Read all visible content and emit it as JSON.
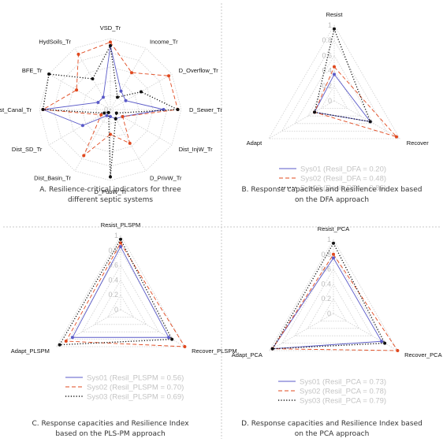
{
  "captions": {
    "A": [
      "A. Resilience-critical indicators for three",
      "different septic systems"
    ],
    "B": [
      "B. Response capacities and Resilience Index based",
      "on the DFA approach"
    ],
    "C": [
      "C. Response capacities and Resilience Index",
      "based on the PLS-PM approach"
    ],
    "D": [
      "D. Response capacities and Resilience Index based",
      "on the PCA approach"
    ]
  },
  "chart_data": [
    {
      "panel": "A",
      "type": "radar",
      "axes": [
        "VSD_Tr",
        "Income_Tr",
        "D_Overflow_Tr",
        "D_Sewer_Tr",
        "Dist_InjW_Tr",
        "D_PrivW_Tr",
        "D_PubW_Tr",
        "Dist_Basin_Tr",
        "Dist_SD_Tr",
        "Dist_Canal_Tr",
        "BFE_Tr",
        "HydSoils_Tr"
      ],
      "ticks": [
        0,
        0.2,
        0.4,
        0.6,
        0.8,
        1
      ],
      "tick_labels": [
        "0",
        "",
        "",
        "",
        "",
        ""
      ],
      "range": [
        0,
        1
      ],
      "grid": "web",
      "series": [
        {
          "values": [
            0.9,
            0.3,
            0.25,
            0.75,
            0.2,
            0.15,
            0.1,
            0.1,
            0.45,
            0.95,
            0.2,
            0.2
          ],
          "color": "#5a5ac8",
          "style": "solid"
        },
        {
          "values": [
            0.95,
            0.6,
            0.95,
            0.95,
            0.2,
            0.55,
            0.35,
            0.75,
            0.15,
            0.95,
            0.55,
            0.9
          ],
          "color": "#e0481e",
          "style": "dashed"
        },
        {
          "values": [
            0.9,
            0.2,
            0.5,
            0.95,
            0.1,
            0.15,
            0.95,
            0.05,
            0.1,
            0.95,
            1.0,
            0.5
          ],
          "color": "#111111",
          "style": "dotted"
        }
      ]
    },
    {
      "panel": "B",
      "type": "radar",
      "axes": [
        "Resist",
        "Recover",
        "Adapt"
      ],
      "ticks": [
        0,
        0.2,
        0.4,
        0.6,
        0.8,
        1
      ],
      "tick_labels": [
        "0",
        "0.2",
        "0.4",
        "0.6",
        "0.8",
        "1"
      ],
      "range": [
        0,
        1
      ],
      "grid": "web",
      "legend_position": "bottom-right",
      "series": [
        {
          "name": "Sys01 (Resil_DFA = 0.20)",
          "values": [
            0.35,
            0.55,
            0.3
          ],
          "color": "#5a5ac8",
          "style": "solid"
        },
        {
          "name": "Sys02 (Resil_DFA = 0.48)",
          "values": [
            0.45,
            0.95,
            0.3
          ],
          "color": "#e0481e",
          "style": "dashed"
        },
        {
          "name": "Sys03 (Resil_DFA = 0.86)",
          "values": [
            0.95,
            0.55,
            0.3
          ],
          "color": "#111111",
          "style": "dotted"
        }
      ]
    },
    {
      "panel": "C",
      "type": "radar",
      "axes": [
        "Resist_PLSPM",
        "Recover_PLSPM",
        "Adapt_PLSPM"
      ],
      "ticks": [
        0,
        0.2,
        0.4,
        0.6,
        0.8,
        1
      ],
      "tick_labels": [
        "0",
        "0.2",
        "0.4",
        "0.6",
        "0.8",
        "1"
      ],
      "range": [
        0,
        1
      ],
      "grid": "web",
      "legend_position": "bottom-right",
      "series": [
        {
          "name": "Sys01 (Resil_PLSPM = 0.56)",
          "values": [
            0.85,
            0.75,
            0.75
          ],
          "color": "#5a5ac8",
          "style": "solid"
        },
        {
          "name": "Sys02 (Resil_PLSPM = 0.70)",
          "values": [
            0.9,
            1.0,
            0.85
          ],
          "color": "#e0481e",
          "style": "dashed"
        },
        {
          "name": "Sys03 (Resil_PLSPM = 0.69)",
          "values": [
            0.95,
            0.8,
            0.95
          ],
          "color": "#111111",
          "style": "dotted"
        }
      ]
    },
    {
      "panel": "D",
      "type": "radar",
      "axes": [
        "Resist_PCA",
        "Recover_PCA",
        "Adapt_PCA"
      ],
      "ticks": [
        0,
        0.2,
        0.4,
        0.6,
        0.8,
        1
      ],
      "tick_labels": [
        "0",
        "0.2",
        "0.4",
        "0.6",
        "0.8",
        "1"
      ],
      "range": [
        0,
        1
      ],
      "grid": "web",
      "legend_position": "bottom-right",
      "series": [
        {
          "name": "Sys01 (Resil_PCA = 0.73)",
          "values": [
            0.75,
            0.75,
            0.95
          ],
          "color": "#5a5ac8",
          "style": "solid"
        },
        {
          "name": "Sys02 (Resil_PCA = 0.78)",
          "values": [
            0.8,
            1.0,
            0.95
          ],
          "color": "#e0481e",
          "style": "dashed"
        },
        {
          "name": "Sys03 (Resil_PCA = 0.79)",
          "values": [
            0.95,
            0.8,
            0.95
          ],
          "color": "#111111",
          "style": "dotted"
        }
      ]
    }
  ]
}
